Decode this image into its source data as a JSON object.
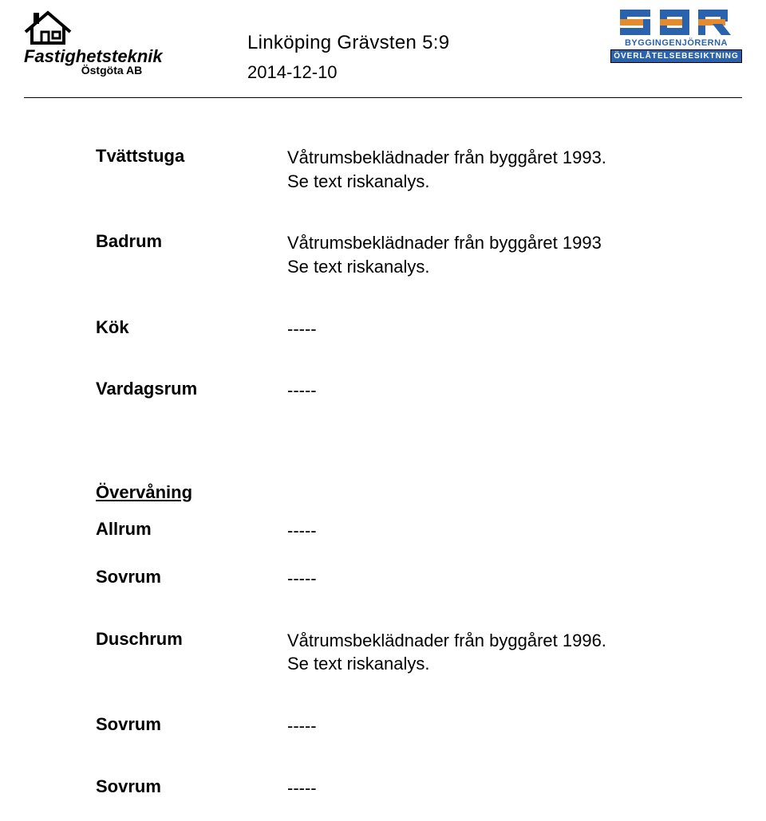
{
  "header": {
    "left_logo": {
      "company_line1": "Fastighetsteknik",
      "company_line2": "Östgöta AB",
      "logo_color": "#000000"
    },
    "title_line1": "Linköping Grävsten 5:9",
    "title_line2": "2014-12-10",
    "right_logo": {
      "sbr_letters": "SBR",
      "mid_text": "BYGGINGENJÖRERNA",
      "bottom_text": "ÖVERLÅTELSEBESIKTNING",
      "blue": "#2a62ad",
      "orange": "#e38b2e",
      "white": "#ffffff"
    }
  },
  "upper_rows": [
    {
      "label": "Tvättstuga",
      "value": "Våtrumsbeklädnader från byggåret 1993.\nSe text riskanalys."
    },
    {
      "label": "Badrum",
      "value": "Våtrumsbeklädnader från byggåret 1993\nSe text riskanalys."
    },
    {
      "label": "Kök",
      "value": "-----"
    },
    {
      "label": "Vardagsrum",
      "value": "-----"
    }
  ],
  "section_heading": "Övervåning",
  "lower_rows": [
    {
      "label": "Allrum",
      "value": "-----"
    },
    {
      "label": "Sovrum",
      "value": "-----"
    },
    {
      "label": "Duschrum",
      "value": "Våtrumsbeklädnader från byggåret 1996.\nSe text riskanalys."
    },
    {
      "label": "Sovrum",
      "value": "-----"
    },
    {
      "label": "Sovrum",
      "value": "-----"
    }
  ],
  "colors": {
    "text": "#000000",
    "background": "#ffffff",
    "rule": "#000000"
  },
  "fonts": {
    "body_family": "Arial",
    "body_size_pt": 16,
    "label_weight": "bold"
  }
}
